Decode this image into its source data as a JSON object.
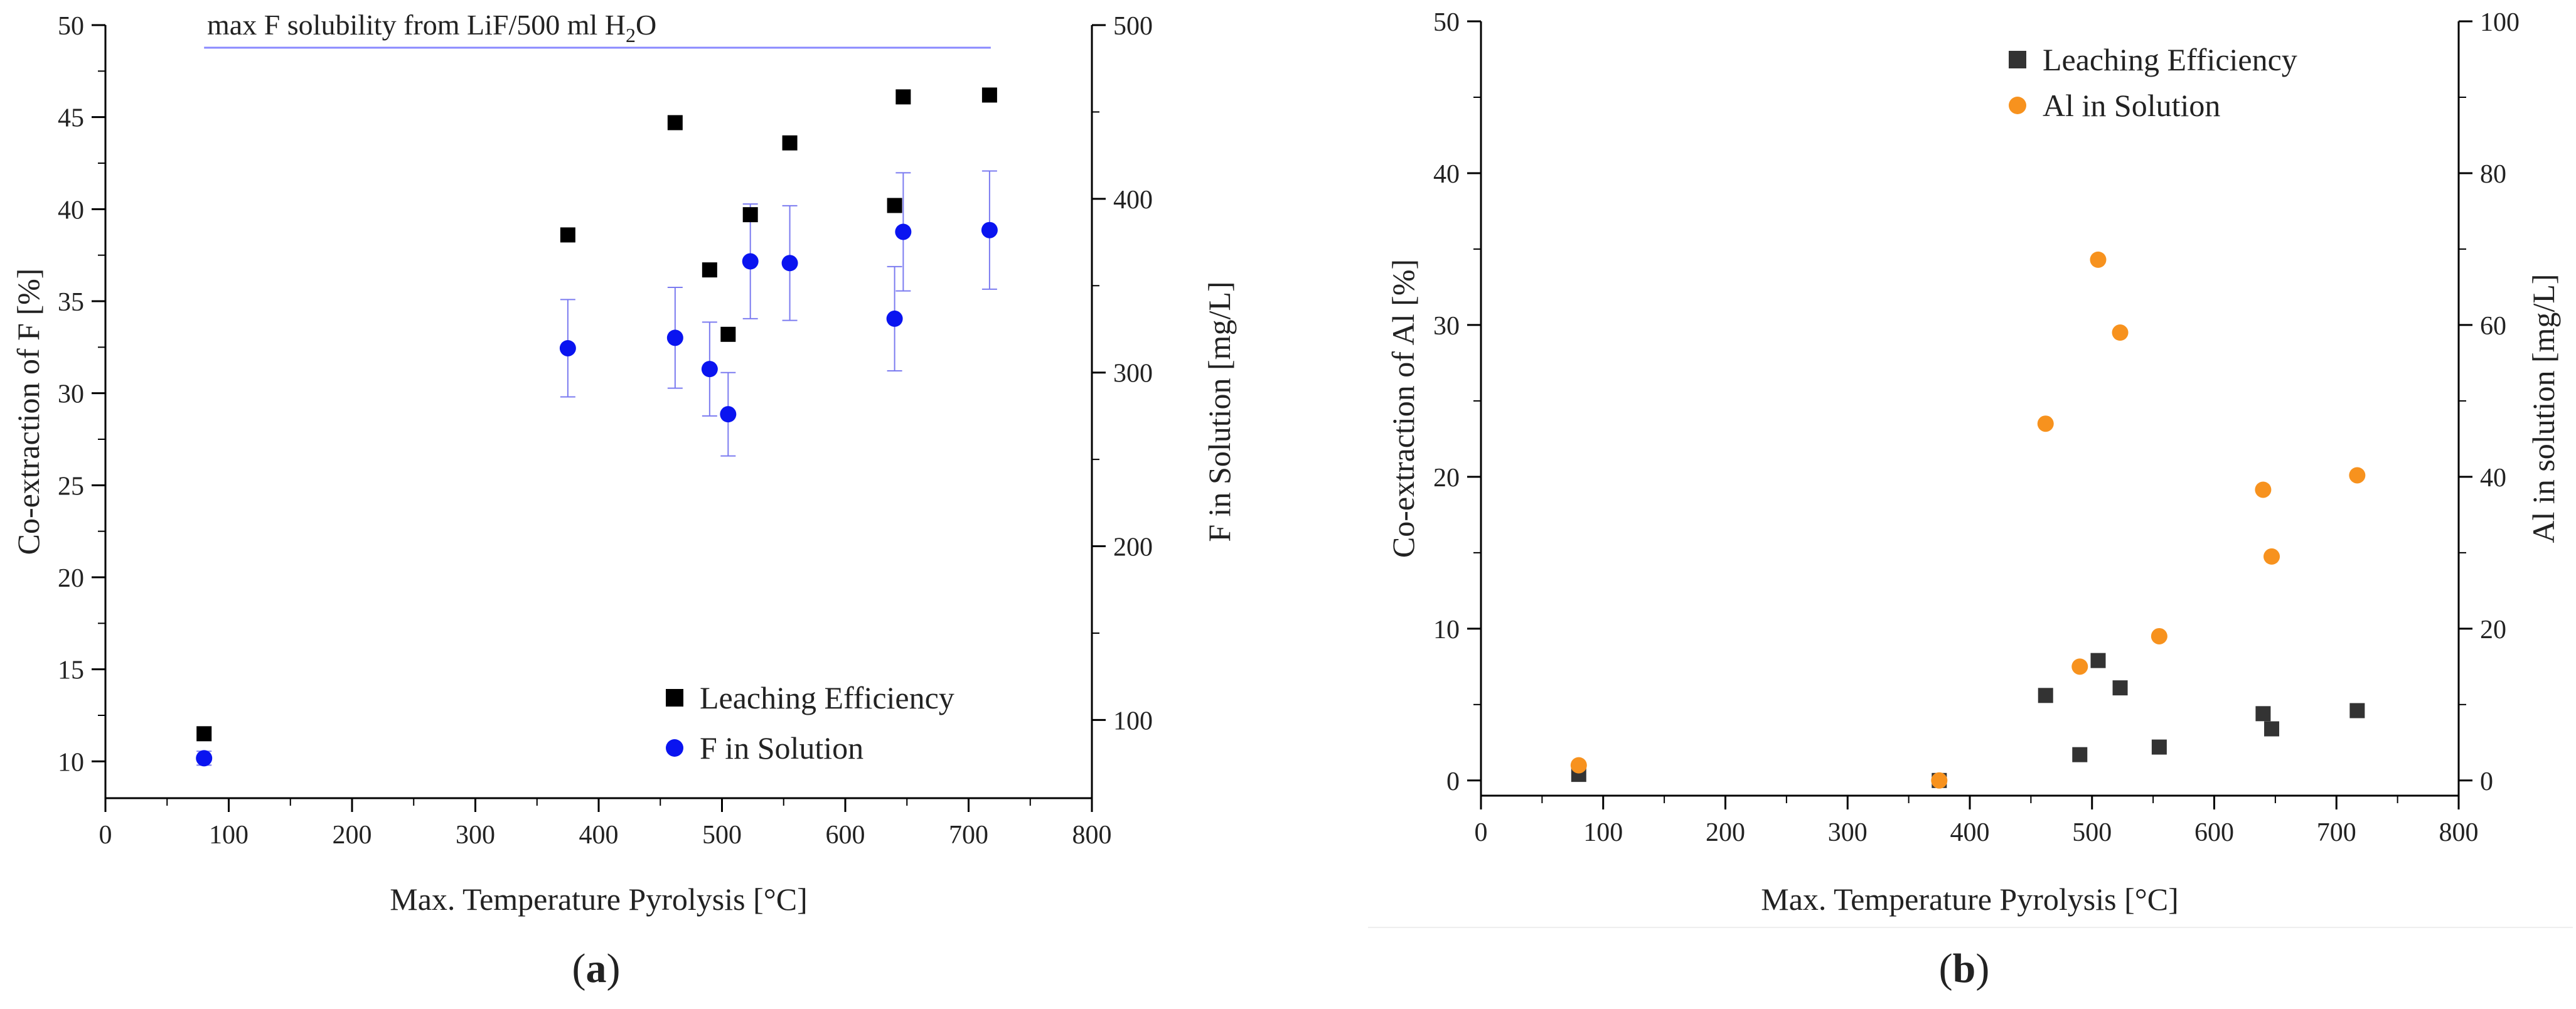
{
  "chart_data": [
    {
      "type": "scatter",
      "panel_label_open": "(",
      "panel_label_letter": "a",
      "panel_label_close": ")",
      "xlabel": "Max. Temperature Pyrolysis [°C]",
      "ylabel": "Co-extraction of F [%]",
      "y2label": "F in Solution [mg/L]",
      "xlim": [
        0,
        800
      ],
      "ylim": [
        8,
        50
      ],
      "y2lim": [
        55,
        500
      ],
      "xticks": [
        0,
        100,
        200,
        300,
        400,
        500,
        600,
        700,
        800
      ],
      "yticks": [
        10,
        15,
        20,
        25,
        30,
        35,
        40,
        45,
        50
      ],
      "y2ticks": [
        100,
        200,
        300,
        400,
        500
      ],
      "annotation": {
        "text_pre": "max F solubility from LiF/500 ml H",
        "sub": "2",
        "text_post": "O",
        "y2_value": 487,
        "x_start": 80,
        "x_end": 718,
        "color": "#8a8aff"
      },
      "legend_position": "bottom-right",
      "series": [
        {
          "name": "Leaching Efficiency",
          "axis": "left",
          "marker": "square",
          "color": "#000000",
          "points": [
            [
              80,
              11.5
            ],
            [
              375,
              38.6
            ],
            [
              462,
              44.7
            ],
            [
              490,
              36.7
            ],
            [
              505,
              33.2
            ],
            [
              523,
              39.7
            ],
            [
              555,
              43.6
            ],
            [
              640,
              40.2
            ],
            [
              647,
              46.1
            ],
            [
              717,
              46.2
            ]
          ]
        },
        {
          "name": "F in Solution",
          "axis": "right",
          "marker": "circle",
          "color": "#0a14f0",
          "error_color": "#7b7bf0",
          "points": [
            [
              80,
              78,
              4
            ],
            [
              375,
              314,
              28
            ],
            [
              462,
              320,
              29
            ],
            [
              490,
              302,
              27
            ],
            [
              505,
              276,
              24
            ],
            [
              523,
              364,
              33
            ],
            [
              555,
              363,
              33
            ],
            [
              640,
              331,
              30
            ],
            [
              647,
              381,
              34
            ],
            [
              717,
              382,
              34
            ]
          ]
        }
      ]
    },
    {
      "type": "scatter",
      "panel_label_open": "(",
      "panel_label_letter": "b",
      "panel_label_close": ")",
      "xlabel": "Max. Temperature Pyrolysis [°C]",
      "ylabel": "Co-extraction of Al [%]",
      "y2label": "Al in solution [mg/L]",
      "xlim": [
        0,
        800
      ],
      "ylim": [
        -1,
        50
      ],
      "y2lim": [
        -2,
        100
      ],
      "xticks": [
        0,
        100,
        200,
        300,
        400,
        500,
        600,
        700,
        800
      ],
      "yticks": [
        0,
        10,
        20,
        30,
        40,
        50
      ],
      "y2ticks": [
        0,
        20,
        40,
        60,
        80,
        100
      ],
      "legend_position": "top-center",
      "series": [
        {
          "name": "Leaching Efficiency",
          "axis": "left",
          "marker": "square",
          "color": "#333333",
          "points": [
            [
              80,
              0.4
            ],
            [
              375,
              0.0
            ],
            [
              462,
              5.6
            ],
            [
              490,
              1.7
            ],
            [
              505,
              7.9
            ],
            [
              523,
              6.1
            ],
            [
              555,
              2.2
            ],
            [
              640,
              4.4
            ],
            [
              647,
              3.4
            ],
            [
              717,
              4.6
            ]
          ]
        },
        {
          "name": "Al in Solution",
          "axis": "right",
          "marker": "circle",
          "color": "#f7921e",
          "points": [
            [
              80,
              2.0
            ],
            [
              375,
              0.0
            ],
            [
              462,
              47.0
            ],
            [
              490,
              15.0
            ],
            [
              505,
              68.6
            ],
            [
              523,
              59.0
            ],
            [
              555,
              19.0
            ],
            [
              640,
              38.3
            ],
            [
              647,
              29.5
            ],
            [
              717,
              40.2
            ]
          ]
        }
      ]
    }
  ]
}
